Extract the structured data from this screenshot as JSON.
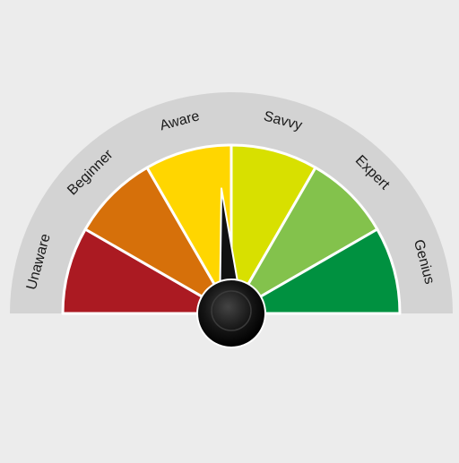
{
  "gauge": {
    "labels": [
      "Unaware",
      "Beginner",
      "Aware",
      "Savvy",
      "Expert",
      "Genius"
    ],
    "segment_colors": [
      "#ab1a22",
      "#d6700a",
      "#ffd600",
      "#d8e000",
      "#83c24c",
      "#009140"
    ],
    "needle_value_fraction": 0.475,
    "needle_icon": "gauge-needle-icon",
    "rim_color": "#d3d3d3",
    "separator_color": "#ffffff",
    "hub_color": "#111111"
  }
}
